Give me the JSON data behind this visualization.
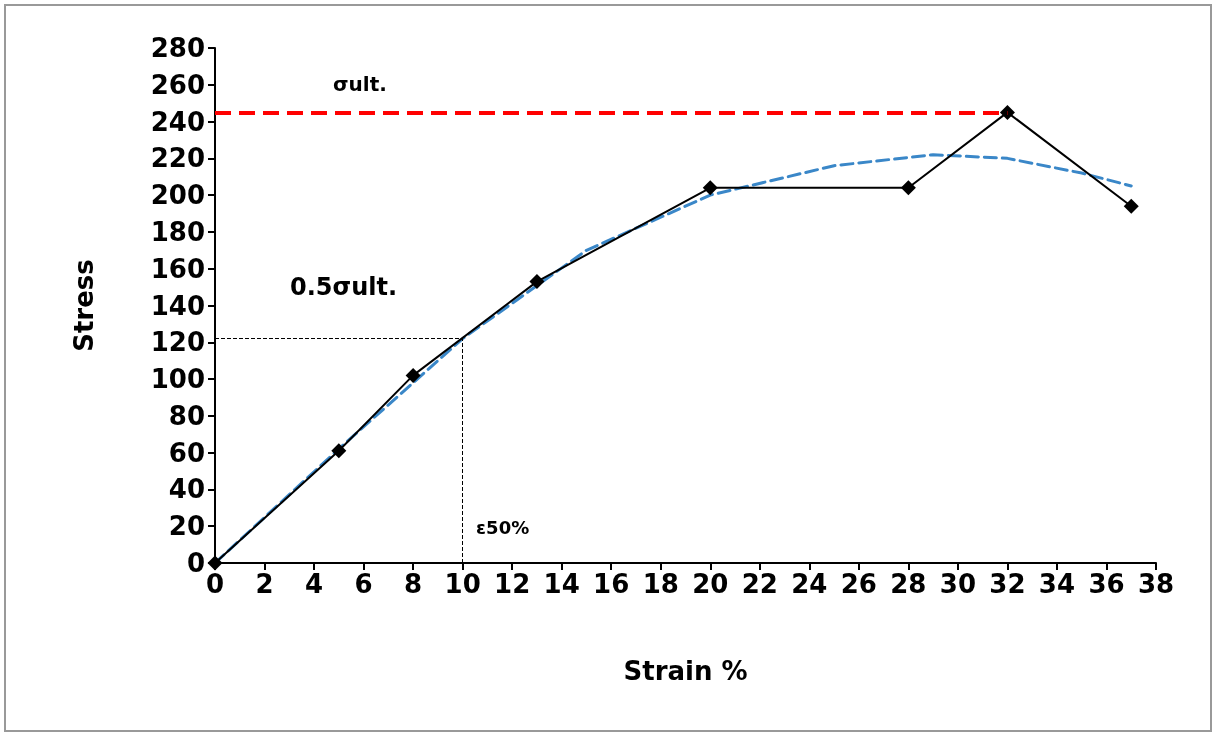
{
  "chart_data": {
    "type": "line",
    "xlabel": "Strain %",
    "ylabel": "Stress",
    "series": [
      {
        "color": "#000000",
        "marker": "diamond",
        "line_style": "solid",
        "x": [
          0,
          5,
          8,
          13,
          20,
          28,
          32,
          37
        ],
        "values": [
          0,
          61,
          102,
          153,
          204,
          204,
          245,
          194
        ]
      },
      {
        "color": "#3a87c8",
        "marker": "none",
        "line_style": "dashed",
        "x": [
          0,
          5,
          10,
          15,
          20,
          25,
          29,
          32,
          35,
          37
        ],
        "values": [
          0,
          62,
          122,
          170,
          200,
          216,
          222,
          220,
          212,
          205
        ]
      }
    ],
    "xlim": [
      0,
      38
    ],
    "xticks": [
      0,
      2,
      4,
      6,
      8,
      10,
      12,
      14,
      16,
      18,
      20,
      22,
      24,
      26,
      28,
      30,
      32,
      34,
      36,
      38
    ],
    "ylim": [
      0,
      280
    ],
    "yticks": [
      0,
      20,
      40,
      60,
      80,
      100,
      120,
      140,
      160,
      180,
      200,
      220,
      240,
      260,
      280
    ],
    "grid": false,
    "ref_lines": [
      {
        "axis": "y",
        "value": 245,
        "label": "σult.",
        "color": "#ff0000",
        "line_style": "dashed"
      },
      {
        "axis": "y",
        "value": 122,
        "label": "0.5σult.",
        "color": "#000000",
        "line_style": "dashed"
      },
      {
        "axis": "x",
        "value": 10,
        "label": "ε50%",
        "color": "#000000",
        "line_style": "dashed"
      }
    ]
  }
}
